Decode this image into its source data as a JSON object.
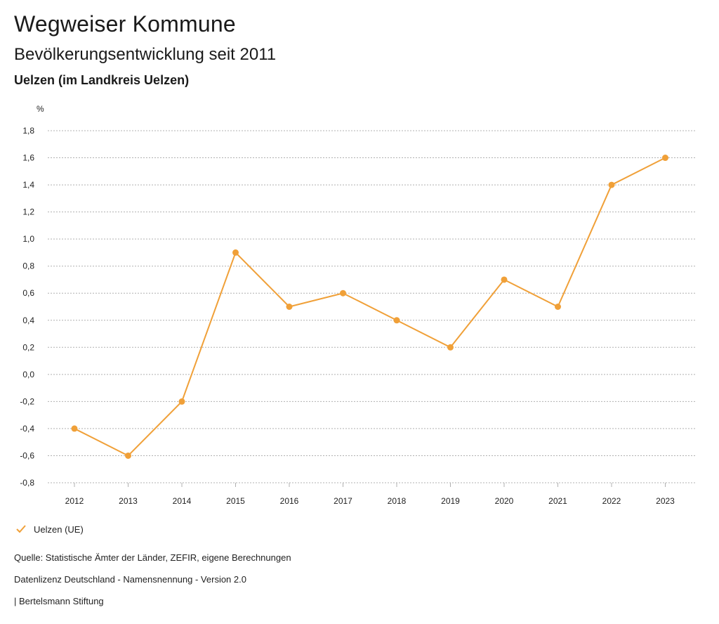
{
  "header": {
    "title": "Wegweiser Kommune",
    "subtitle": "Bevölkerungsentwicklung seit 2011",
    "region": "Uelzen (im Landkreis Uelzen)"
  },
  "legend": {
    "label": "Uelzen (UE)"
  },
  "footer": {
    "source": "Quelle: Statistische Ämter der Länder, ZEFIR, eigene Berechnungen",
    "license": "Datenlizenz Deutschland - Namensnennung - Version 2.0",
    "publisher": "| Bertelsmann Stiftung"
  },
  "colors": {
    "series": "#f0a038",
    "grid": "#b0b0b0"
  },
  "chart_data": {
    "type": "line",
    "title": "Bevölkerungsentwicklung seit 2011",
    "xlabel": "",
    "ylabel": "%",
    "categories": [
      "2012",
      "2013",
      "2014",
      "2015",
      "2016",
      "2017",
      "2018",
      "2019",
      "2020",
      "2021",
      "2022",
      "2023"
    ],
    "series": [
      {
        "name": "Uelzen (UE)",
        "values": [
          -0.4,
          -0.6,
          -0.2,
          0.9,
          0.5,
          0.6,
          0.4,
          0.2,
          0.7,
          0.5,
          1.4,
          1.6
        ]
      }
    ],
    "ylim": [
      -0.8,
      1.8
    ],
    "yticks": [
      1.8,
      1.6,
      1.4,
      1.2,
      1.0,
      0.8,
      0.6,
      0.4,
      0.2,
      0.0,
      -0.2,
      -0.4,
      -0.6,
      -0.8
    ],
    "ytick_labels": [
      "1,8",
      "1,6",
      "1,4",
      "1,2",
      "1,0",
      "0,8",
      "0,6",
      "0,4",
      "0,2",
      "0,0",
      "-0,2",
      "-0,4",
      "-0,6",
      "-0,8"
    ],
    "grid": true,
    "legend_position": "bottom-left"
  }
}
